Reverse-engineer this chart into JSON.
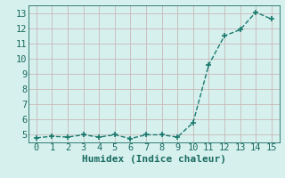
{
  "x": [
    0,
    1,
    2,
    3,
    4,
    5,
    6,
    7,
    8,
    9,
    10,
    11,
    12,
    13,
    14,
    15
  ],
  "y": [
    4.8,
    4.9,
    4.85,
    5.0,
    4.85,
    5.0,
    4.75,
    5.0,
    5.0,
    4.85,
    5.8,
    9.6,
    11.5,
    11.9,
    13.05,
    12.6
  ],
  "line_color": "#1a7a6e",
  "marker": "+",
  "marker_size": 5,
  "marker_linewidth": 1.2,
  "line_style": "--",
  "line_width": 1.0,
  "xlabel": "Humidex (Indice chaleur)",
  "xlim": [
    -0.5,
    15.5
  ],
  "ylim": [
    4.5,
    13.5
  ],
  "xticks": [
    0,
    1,
    2,
    3,
    4,
    5,
    6,
    7,
    8,
    9,
    10,
    11,
    12,
    13,
    14,
    15
  ],
  "yticks": [
    5,
    6,
    7,
    8,
    9,
    10,
    11,
    12,
    13
  ],
  "bg_color": "#d6f0ee",
  "grid_color": "#c8b8b8",
  "line_teal": "#1a6b60",
  "xlabel_fontsize": 8,
  "tick_fontsize": 7.5
}
